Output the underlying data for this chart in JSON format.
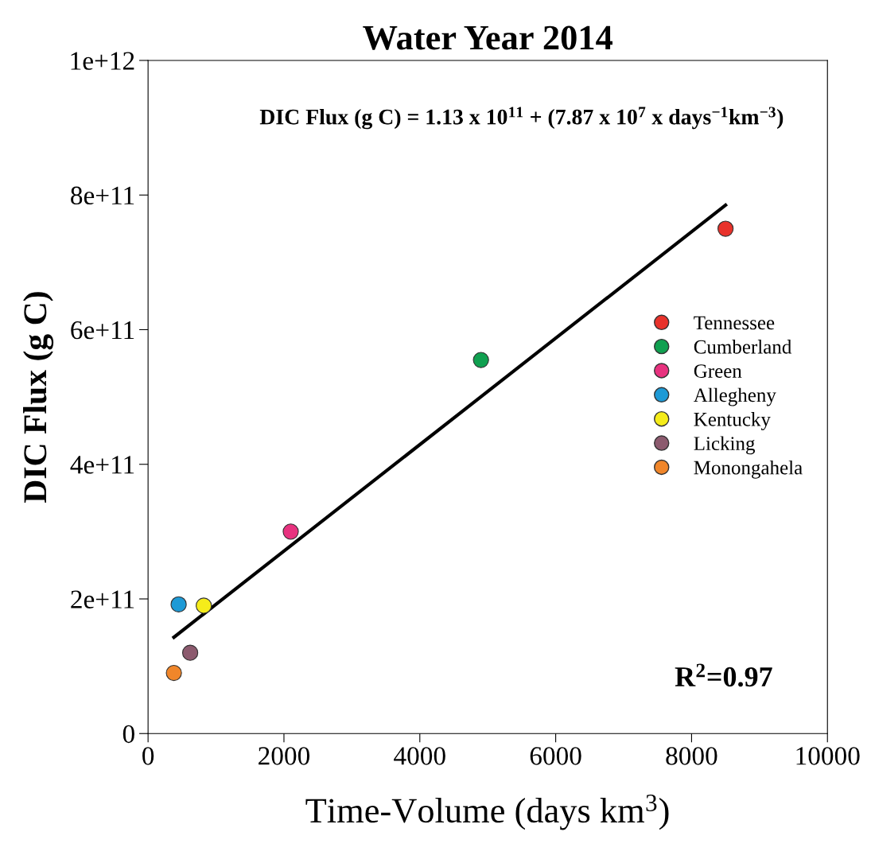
{
  "chart_data": {
    "type": "scatter",
    "title": "Water Year 2014",
    "xlabel": "Time-Volume (days km$^{3}$)",
    "ylabel": "DIC Flux (g C)",
    "series": [
      {
        "name": "Tennessee",
        "color": "#e8322b",
        "x": [
          8500
        ],
        "values": [
          750000000000.0
        ]
      },
      {
        "name": "Cumberland",
        "color": "#10a050",
        "x": [
          4900
        ],
        "values": [
          555000000000.0
        ]
      },
      {
        "name": "Green",
        "color": "#e8327f",
        "x": [
          2100
        ],
        "values": [
          300000000000.0
        ]
      },
      {
        "name": "Allegheny",
        "color": "#1e9ad6",
        "x": [
          450
        ],
        "values": [
          192000000000.0
        ]
      },
      {
        "name": "Kentucky",
        "color": "#f5ec1a",
        "x": [
          820
        ],
        "values": [
          190000000000.0
        ]
      },
      {
        "name": "Licking",
        "color": "#8c5a6e",
        "x": [
          620
        ],
        "values": [
          120000000000.0
        ]
      },
      {
        "name": "Monongahela",
        "color": "#f0862a",
        "x": [
          380
        ],
        "values": [
          90000000000.0
        ]
      },
      {
        "type": "line",
        "marker": "none",
        "color": "#000000",
        "x": [
          380,
          8500
        ],
        "values": [
          143000000000.0,
          785000000000.0
        ]
      }
    ],
    "annotations": [
      {
        "text": "DIC Flux (g C) = 1.13 x 10$^{11}$ + (7.87 x 10$^{7}$ x days$^{−1}$km$^{−3}$)"
      },
      {
        "text": "R$^{2}$=0.97"
      }
    ],
    "xlim": [
      0,
      10000
    ],
    "xticks": [
      0,
      2000,
      4000,
      6000,
      8000,
      10000
    ],
    "ylim": [
      0,
      1000000000000.0
    ],
    "yticks": [
      0,
      {
        "value": 200000000000.0,
        "label": "2e+11"
      },
      {
        "value": 400000000000.0,
        "label": "4e+11"
      },
      {
        "value": 600000000000.0,
        "label": "6e+11"
      },
      {
        "value": 800000000000.0,
        "label": "8e+11"
      },
      {
        "value": 1000000000000.0,
        "label": "1e+12"
      }
    ],
    "marker": "circle",
    "grid": false,
    "legend": "right"
  }
}
